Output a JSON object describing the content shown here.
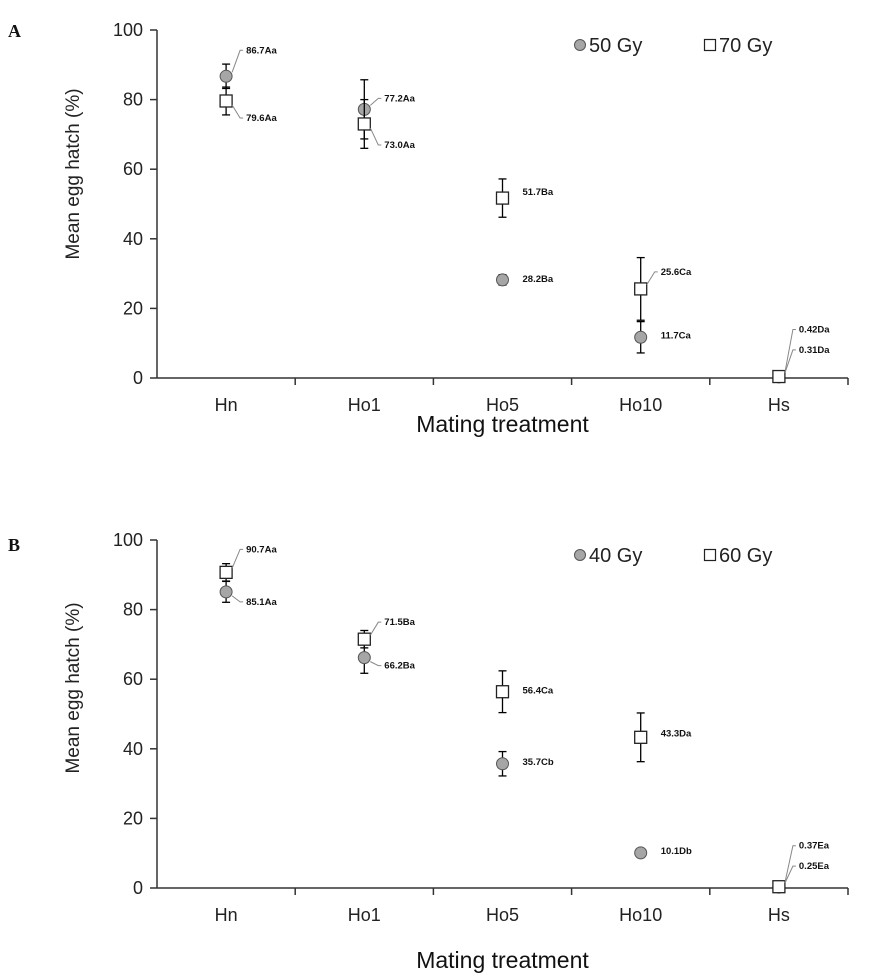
{
  "colors": {
    "circle_fill": "#a6a6a6",
    "circle_stroke": "#555555",
    "square_fill": "#ffffff",
    "square_stroke": "#222222",
    "axis": "#333333"
  },
  "chart_data": [
    {
      "type": "scatter",
      "panel_label": "A",
      "xlabel": "Mating treatment",
      "ylabel": "Mean egg hatch (%)",
      "ylim": [
        0,
        100
      ],
      "yticks": [
        0,
        20,
        40,
        60,
        80,
        100
      ],
      "categories": [
        "Hn",
        "Ho1",
        "Ho5",
        "Ho10",
        "Hs"
      ],
      "grid": false,
      "legend": "top-right",
      "series": [
        {
          "name": "50 Gy",
          "marker": "circle",
          "values": [
            86.7,
            77.2,
            28.2,
            11.7,
            0.31
          ],
          "errors": [
            3.5,
            8.5,
            1.5,
            4.5,
            0
          ],
          "labels": [
            "86.7Aa",
            "77.2Aa",
            "28.2Ba",
            "11.7Ca",
            "0.31Da"
          ]
        },
        {
          "name": "70 Gy",
          "marker": "square",
          "values": [
            79.6,
            73.0,
            51.7,
            25.6,
            0.42
          ],
          "errors": [
            4.0,
            7.0,
            5.5,
            9.0,
            0
          ],
          "labels": [
            "79.6Aa",
            "73.0Aa",
            "51.7Ba",
            "25.6Ca",
            "0.42Da"
          ]
        }
      ]
    },
    {
      "type": "scatter",
      "panel_label": "B",
      "xlabel": "Mating treatment",
      "ylabel": "Mean egg hatch (%)",
      "ylim": [
        0,
        100
      ],
      "yticks": [
        0,
        20,
        40,
        60,
        80,
        100
      ],
      "categories": [
        "Hn",
        "Ho1",
        "Ho5",
        "Ho10",
        "Hs"
      ],
      "grid": false,
      "legend": "top-right",
      "series": [
        {
          "name": "40 Gy",
          "marker": "circle",
          "values": [
            85.1,
            66.2,
            35.7,
            10.1,
            0.25
          ],
          "errors": [
            3.0,
            4.5,
            3.5,
            0,
            0
          ],
          "labels": [
            "85.1Aa",
            "66.2Ba",
            "35.7Cb",
            "10.1Db",
            "0.25Ea"
          ]
        },
        {
          "name": "60 Gy",
          "marker": "square",
          "values": [
            90.7,
            71.5,
            56.4,
            43.3,
            0.37
          ],
          "errors": [
            2.5,
            2.5,
            6.0,
            7.0,
            0
          ],
          "labels": [
            "90.7Aa",
            "71.5Ba",
            "56.4Ca",
            "43.3Da",
            "0.37Ea"
          ]
        }
      ]
    }
  ]
}
